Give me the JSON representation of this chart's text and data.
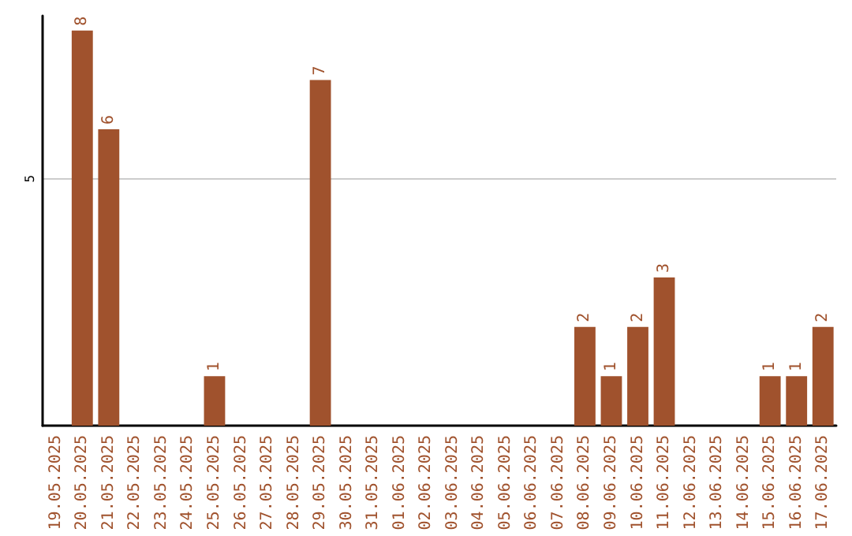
{
  "chart_data": {
    "type": "bar",
    "categories": [
      "19.05.2025",
      "20.05.2025",
      "21.05.2025",
      "22.05.2025",
      "23.05.2025",
      "24.05.2025",
      "25.05.2025",
      "26.05.2025",
      "27.05.2025",
      "28.05.2025",
      "29.05.2025",
      "30.05.2025",
      "31.05.2025",
      "01.06.2025",
      "02.06.2025",
      "03.06.2025",
      "04.06.2025",
      "05.06.2025",
      "06.06.2025",
      "07.06.2025",
      "08.06.2025",
      "09.06.2025",
      "10.06.2025",
      "11.06.2025",
      "12.06.2025",
      "13.06.2025",
      "14.06.2025",
      "15.06.2025",
      "16.06.2025",
      "17.06.2025"
    ],
    "values": [
      0,
      8,
      6,
      0,
      0,
      0,
      1,
      0,
      0,
      0,
      7,
      0,
      0,
      0,
      0,
      0,
      0,
      0,
      0,
      0,
      2,
      1,
      2,
      3,
      0,
      0,
      0,
      1,
      1,
      2
    ],
    "value_labels": [
      null,
      "8",
      "6",
      null,
      null,
      null,
      "1",
      null,
      null,
      null,
      "7",
      null,
      null,
      null,
      null,
      null,
      null,
      null,
      null,
      null,
      "2",
      "1",
      "2",
      "3",
      null,
      null,
      null,
      "1",
      "1",
      "2"
    ],
    "color": "#a0522d",
    "ylim": [
      0,
      8.3
    ],
    "yticks": [
      5
    ],
    "grid": "y"
  }
}
